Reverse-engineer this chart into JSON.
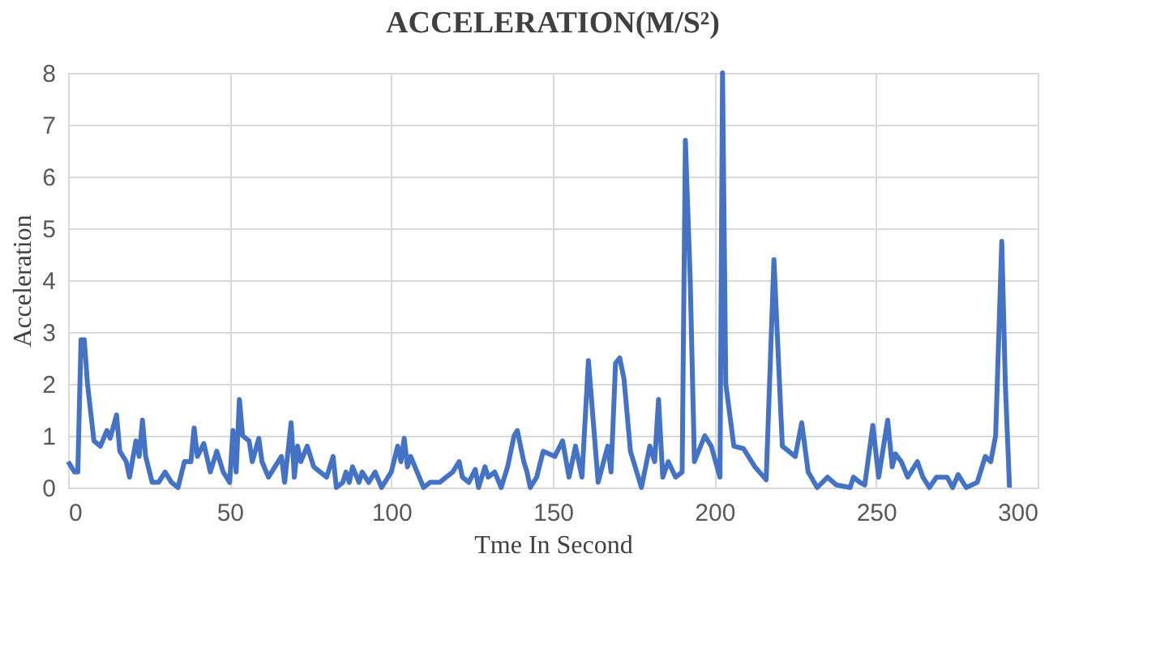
{
  "chart_data": {
    "type": "line",
    "title": "ACCELERATION(M/S²)",
    "xlabel": "Tme In Second",
    "ylabel": "Acceleration",
    "xlim": [
      0,
      300
    ],
    "xticks": [
      0,
      50,
      100,
      150,
      200,
      250,
      300
    ],
    "ylim": [
      0,
      8
    ],
    "yticks": [
      0,
      1,
      2,
      3,
      4,
      5,
      6,
      7,
      8
    ],
    "grid": true,
    "marker": "none",
    "line_style": "solid",
    "series": [
      {
        "color": "#4472c4",
        "x": [
          0,
          2,
          3,
          4,
          5,
          6,
          8,
          10,
          12,
          13,
          15,
          16,
          18,
          19,
          21,
          22,
          23,
          24,
          26,
          28,
          30,
          32,
          34,
          36,
          38,
          39,
          40,
          42,
          44,
          46,
          48,
          50,
          51,
          52,
          53,
          54,
          56,
          57,
          59,
          60,
          62,
          64,
          66,
          67,
          69,
          70,
          71,
          72,
          74,
          76,
          78,
          80,
          82,
          83,
          85,
          86,
          87,
          88,
          90,
          91,
          93,
          95,
          97,
          99,
          100,
          102,
          103,
          104,
          105,
          106,
          108,
          110,
          112,
          115,
          117,
          119,
          121,
          122,
          124,
          126,
          127,
          129,
          130,
          132,
          134,
          136,
          138,
          139,
          141,
          142,
          143,
          145,
          147,
          150.6,
          153,
          155,
          157,
          159,
          161,
          164,
          167,
          168,
          169.4,
          170.7,
          172,
          174,
          177.4,
          180,
          181.5,
          182.7,
          184,
          185.7,
          188,
          190,
          191,
          192.5,
          193.8,
          197,
          199,
          201.7,
          202.5,
          203.5,
          206,
          209,
          212.5,
          216,
          218.4,
          221,
          225,
          227,
          229,
          231.8,
          235,
          237.7,
          242,
          243,
          245,
          246.5,
          249,
          250.8,
          253.6,
          255,
          256,
          257.8,
          259.8,
          262.8,
          264.5,
          266.5,
          268.7,
          272,
          273.7,
          275.4,
          277.9,
          281.3,
          283.8,
          285.5,
          287,
          288.9,
          290,
          291.3
        ],
        "values": [
          0.5,
          0.3,
          0.3,
          2.85,
          2.85,
          2.0,
          0.9,
          0.8,
          1.1,
          0.95,
          1.4,
          0.7,
          0.5,
          0.2,
          0.9,
          0.6,
          1.3,
          0.6,
          0.1,
          0.1,
          0.3,
          0.1,
          0.0,
          0.5,
          0.5,
          1.15,
          0.6,
          0.85,
          0.3,
          0.7,
          0.3,
          0.1,
          1.1,
          0.3,
          1.7,
          1.0,
          0.9,
          0.5,
          0.95,
          0.5,
          0.2,
          0.4,
          0.6,
          0.1,
          1.25,
          0.2,
          0.8,
          0.5,
          0.8,
          0.4,
          0.3,
          0.2,
          0.6,
          0.0,
          0.1,
          0.3,
          0.1,
          0.4,
          0.1,
          0.3,
          0.1,
          0.3,
          0.0,
          0.2,
          0.3,
          0.8,
          0.5,
          0.95,
          0.4,
          0.6,
          0.3,
          0.0,
          0.1,
          0.1,
          0.2,
          0.3,
          0.5,
          0.2,
          0.1,
          0.35,
          0.0,
          0.4,
          0.2,
          0.3,
          0.0,
          0.4,
          1.0,
          1.1,
          0.5,
          0.3,
          0.0,
          0.2,
          0.7,
          0.6,
          0.9,
          0.2,
          0.8,
          0.2,
          2.45,
          0.1,
          0.8,
          0.3,
          2.4,
          2.5,
          2.1,
          0.7,
          0.0,
          0.8,
          0.5,
          1.7,
          0.2,
          0.5,
          0.2,
          0.3,
          6.7,
          4.0,
          0.5,
          1.0,
          0.8,
          0.2,
          8.0,
          2.0,
          0.8,
          0.75,
          0.4,
          0.15,
          4.4,
          0.8,
          0.6,
          1.25,
          0.3,
          0.0,
          0.2,
          0.05,
          0.0,
          0.2,
          0.1,
          0.05,
          1.2,
          0.2,
          1.3,
          0.4,
          0.65,
          0.5,
          0.2,
          0.5,
          0.2,
          0.0,
          0.2,
          0.2,
          0.0,
          0.25,
          0.0,
          0.1,
          0.6,
          0.5,
          1.0,
          4.75,
          2.0,
          0.0
        ]
      }
    ]
  }
}
